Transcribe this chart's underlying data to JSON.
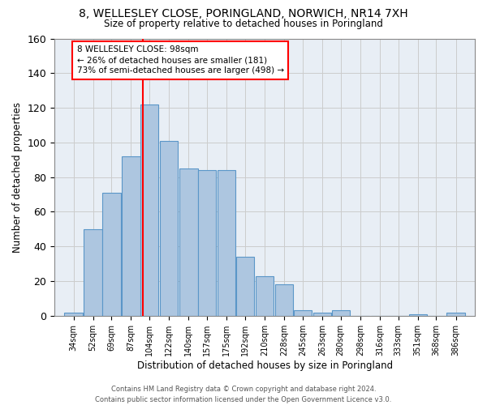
{
  "title": "8, WELLESLEY CLOSE, PORINGLAND, NORWICH, NR14 7XH",
  "subtitle": "Size of property relative to detached houses in Poringland",
  "xlabel": "Distribution of detached houses by size in Poringland",
  "ylabel": "Number of detached properties",
  "bar_labels": [
    "34sqm",
    "52sqm",
    "69sqm",
    "87sqm",
    "104sqm",
    "122sqm",
    "140sqm",
    "157sqm",
    "175sqm",
    "192sqm",
    "210sqm",
    "228sqm",
    "245sqm",
    "263sqm",
    "280sqm",
    "298sqm",
    "316sqm",
    "333sqm",
    "351sqm",
    "368sqm",
    "386sqm"
  ],
  "bar_values": [
    2,
    50,
    71,
    92,
    122,
    101,
    85,
    84,
    84,
    34,
    23,
    18,
    3,
    2,
    3,
    0,
    0,
    0,
    1,
    0,
    2
  ],
  "bar_color": "#adc6e0",
  "bar_edge_color": "#5a96c8",
  "grid_color": "#cccccc",
  "background_color": "#e8eef5",
  "annotation_text": "8 WELLESLEY CLOSE: 98sqm\n← 26% of detached houses are smaller (181)\n73% of semi-detached houses are larger (498) →",
  "annotation_box_color": "white",
  "annotation_box_edge": "red",
  "property_size": 98,
  "footer_text": "Contains HM Land Registry data © Crown copyright and database right 2024.\nContains public sector information licensed under the Open Government Licence v3.0.",
  "ylim": [
    0,
    160
  ],
  "yticks": [
    0,
    20,
    40,
    60,
    80,
    100,
    120,
    140,
    160
  ]
}
